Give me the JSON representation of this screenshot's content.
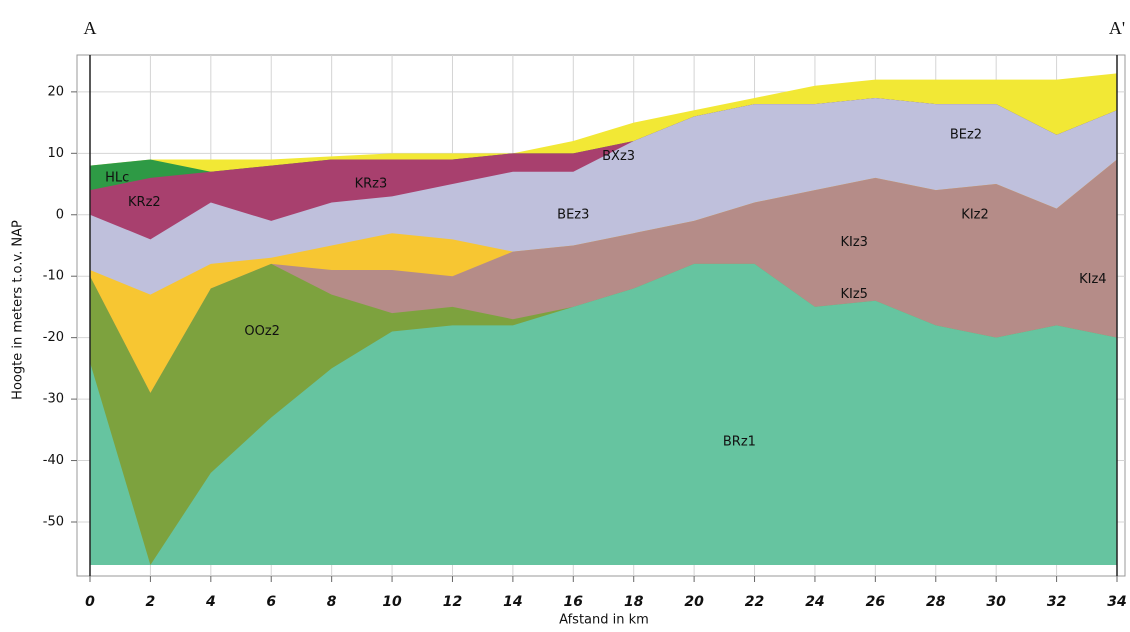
{
  "chart_data": {
    "type": "area",
    "section_start": "A",
    "section_end": "A'",
    "xlabel": "Afstand in km",
    "ylabel": "Hoogte in meters t.o.v. NAP",
    "x": [
      0,
      2,
      4,
      6,
      8,
      10,
      12,
      14,
      16,
      18,
      20,
      22,
      24,
      26,
      28,
      30,
      32,
      34
    ],
    "xlim": [
      0,
      34
    ],
    "xticks": [
      0,
      2,
      4,
      6,
      8,
      10,
      12,
      14,
      16,
      18,
      20,
      22,
      24,
      26,
      28,
      30,
      32,
      34
    ],
    "ylim": [
      -57,
      26
    ],
    "yticks": [
      -50,
      -40,
      -30,
      -20,
      -10,
      0,
      10,
      20
    ],
    "grid": true,
    "series": [
      {
        "labels": [
          "BXz3"
        ],
        "color": "#f2e835",
        "values": [
          8,
          9,
          9,
          9,
          9.5,
          10,
          10,
          10,
          12,
          15,
          17,
          19,
          21,
          22,
          22,
          22,
          22,
          23
        ]
      },
      {
        "labels": [
          "HLc"
        ],
        "color": "#2e9a45",
        "values": [
          8,
          9,
          7,
          8,
          9,
          9,
          9,
          10,
          10,
          12,
          16,
          18,
          18,
          19,
          18,
          18,
          13,
          17
        ]
      },
      {
        "labels": [
          "KRz2",
          "KRz3"
        ],
        "color": "#a8406e",
        "values": [
          4,
          6,
          7,
          8,
          9,
          9,
          9,
          10,
          10,
          12,
          16,
          18,
          18,
          19,
          18,
          18,
          13,
          17
        ]
      },
      {
        "labels": [
          "BEz3",
          "BEz2"
        ],
        "color": "#bfc0dc",
        "values": [
          0,
          -4,
          2,
          -1,
          2,
          3,
          5,
          7,
          7,
          12,
          16,
          18,
          18,
          19,
          18,
          18,
          13,
          17
        ]
      },
      {
        "color": "#f7c632",
        "values": [
          -9,
          -13,
          -8,
          -7,
          -5,
          -3,
          -4,
          -6,
          -5,
          -3,
          -1,
          2,
          4,
          6,
          4,
          5,
          1,
          9
        ]
      },
      {
        "labels": [
          "KIz2",
          "KIz3",
          "KIz5",
          "KIz4"
        ],
        "color": "#b58c88",
        "values": [
          -10,
          -29,
          -12,
          -8,
          -9,
          -9,
          -10,
          -6,
          -5,
          -3,
          -1,
          2,
          4,
          6,
          4,
          5,
          1,
          9
        ]
      },
      {
        "labels": [
          "OOz2"
        ],
        "color": "#7da23e",
        "values": [
          -10,
          -29,
          -12,
          -8,
          -13,
          -16,
          -15,
          -17,
          -15,
          -12,
          -8,
          -8,
          -15,
          -14,
          -18,
          -20,
          -18,
          -20
        ]
      },
      {
        "labels": [
          "BRz1"
        ],
        "color": "#66c4a0",
        "values": [
          -24,
          -57,
          -42,
          -33,
          -25,
          -19,
          -18,
          -18,
          -15,
          -12,
          -8,
          -8,
          -15,
          -14,
          -18,
          -20,
          -18,
          -20
        ]
      }
    ]
  }
}
